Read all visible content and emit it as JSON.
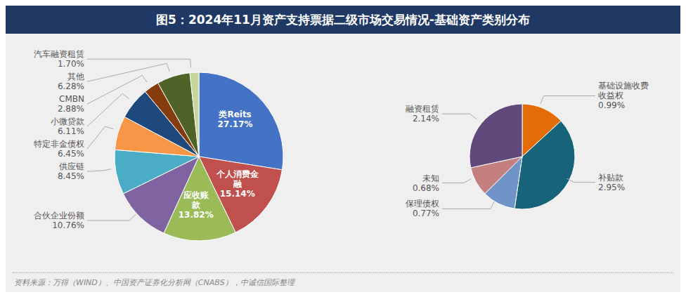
{
  "chart_data": [
    {
      "type": "pie",
      "title": "图5：2024年11月资产支持票据二级市场交易情况-基础资产类别分布",
      "annotations": [
        "资料来源：万得（WIND）、中国资产证券化分析网（CNABS），中诚信国际整理"
      ],
      "categories": [
        "类Reits",
        "个人消费金\n融",
        "应收账\n款",
        "合伙企业份额",
        "供应链",
        "特定非金债权",
        "小微贷款",
        "CMBN",
        "其他",
        "汽车融资租赁"
      ],
      "values": [
        27.17,
        15.14,
        13.82,
        10.76,
        8.45,
        6.45,
        6.11,
        2.88,
        6.28,
        1.7
      ],
      "value_labels": [
        "27.17%",
        "15.14%",
        "13.82%",
        "10.76%",
        "8.45%",
        "6.45%",
        "6.11%",
        "2.88%",
        "6.28%",
        "1.70%"
      ],
      "colors": [
        "#4472C4",
        "#C0504D",
        "#9BBB59",
        "#8064A2",
        "#4BACC6",
        "#F79646",
        "#1F497D",
        "#843C0C",
        "#4F6228",
        "#C3D69B"
      ],
      "data_labels": true
    },
    {
      "type": "pie",
      "categories": [
        "基础设施收费\n收益权",
        "补贴款",
        "保理债权",
        "未知",
        "融资租赁"
      ],
      "values": [
        0.99,
        2.95,
        0.77,
        0.68,
        2.14
      ],
      "value_labels": [
        "0.99%",
        "2.95%",
        "0.77%",
        "0.68%",
        "2.14%"
      ],
      "colors": [
        "#E36C09",
        "#17637A",
        "#7094C8",
        "#C47F7F",
        "#604A7B"
      ],
      "data_labels": true
    }
  ]
}
